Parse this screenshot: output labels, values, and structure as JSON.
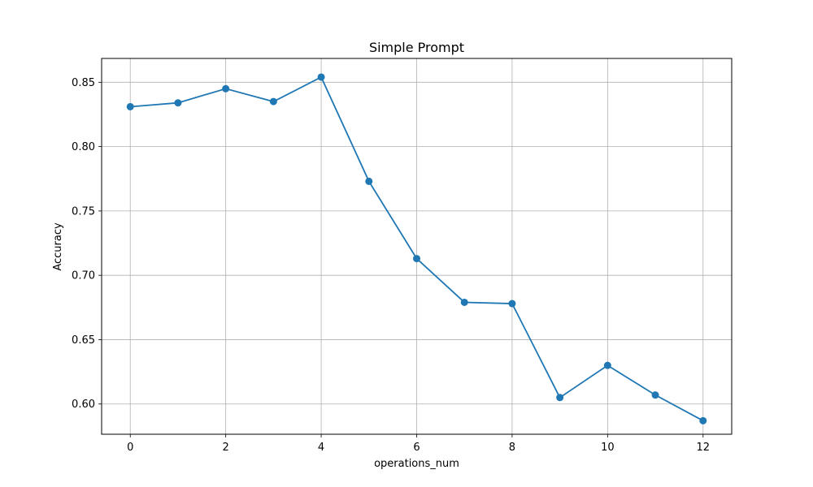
{
  "chart_data": {
    "type": "line",
    "title": "Simple Prompt",
    "xlabel": "operations_num",
    "ylabel": "Accuracy",
    "x": [
      0,
      1,
      2,
      3,
      4,
      5,
      6,
      7,
      8,
      9,
      10,
      11,
      12
    ],
    "series": [
      {
        "values": [
          0.831,
          0.834,
          0.845,
          0.835,
          0.854,
          0.773,
          0.713,
          0.679,
          0.678,
          0.605,
          0.63,
          0.607,
          0.587
        ]
      }
    ],
    "xlim": [
      -0.6,
      12.6
    ],
    "ylim": [
      0.5765,
      0.8685
    ],
    "xticks": [
      0,
      2,
      4,
      6,
      8,
      10,
      12
    ],
    "xtick_labels": [
      "0",
      "2",
      "4",
      "6",
      "8",
      "10",
      "12"
    ],
    "yticks": [
      0.6,
      0.65,
      0.7,
      0.75,
      0.8,
      0.85
    ],
    "ytick_labels": [
      "0.60",
      "0.65",
      "0.70",
      "0.75",
      "0.80",
      "0.85"
    ],
    "grid": true,
    "line_color": "#1f77b4",
    "marker": "circle"
  }
}
